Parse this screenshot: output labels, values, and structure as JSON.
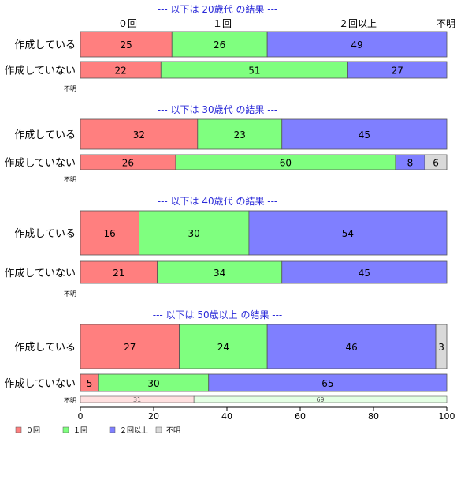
{
  "chart_data": {
    "type": "bar",
    "orientation": "horizontal",
    "stacked": true,
    "xlim": [
      0,
      100
    ],
    "x_ticks": [
      "0",
      "20",
      "40",
      "60",
      "80",
      "100"
    ],
    "grid": false,
    "legend_position": "bottom-left",
    "top_category_labels": [
      "０回",
      "１回",
      "２回以上",
      "不明"
    ],
    "legend": [
      {
        "name": "０回",
        "color": "#ff7f7f"
      },
      {
        "name": "１回",
        "color": "#7fff7f"
      },
      {
        "name": "２回以上",
        "color": "#7f7fff"
      },
      {
        "name": "不明",
        "color": "#d9d9d9"
      }
    ],
    "groups": [
      {
        "title": "--- 以下は 20歳代 の結果 ---",
        "rows": [
          {
            "label": "作成している",
            "values": [
              25,
              26,
              49,
              0
            ]
          },
          {
            "label": "作成していない",
            "values": [
              22,
              51,
              27,
              0
            ]
          }
        ],
        "unknown_label": "不明",
        "unknown_values": null
      },
      {
        "title": "--- 以下は 30歳代 の結果 ---",
        "rows": [
          {
            "label": "作成している",
            "values": [
              32,
              23,
              45,
              0
            ]
          },
          {
            "label": "作成していない",
            "values": [
              26,
              60,
              8,
              6
            ]
          }
        ],
        "unknown_label": "不明",
        "unknown_values": null
      },
      {
        "title": "--- 以下は 40歳代 の結果 ---",
        "rows": [
          {
            "label": "作成している",
            "values": [
              16,
              30,
              54,
              0
            ]
          },
          {
            "label": "作成していない",
            "values": [
              21,
              34,
              45,
              0
            ]
          }
        ],
        "unknown_label": "不明",
        "unknown_values": null
      },
      {
        "title": "--- 以下は 50歳以上 の結果 ---",
        "rows": [
          {
            "label": "作成している",
            "values": [
              27,
              24,
              46,
              3
            ]
          },
          {
            "label": "作成していない",
            "values": [
              5,
              30,
              65,
              0
            ]
          }
        ],
        "unknown_label": "不明",
        "unknown_values": [
          31,
          69,
          0,
          0
        ]
      }
    ]
  },
  "colors": {
    "title": "#2a2ad8",
    "border": "#555555",
    "unknown_fill_0": "#ffe0e0",
    "unknown_fill_1": "#e4ffe4"
  }
}
